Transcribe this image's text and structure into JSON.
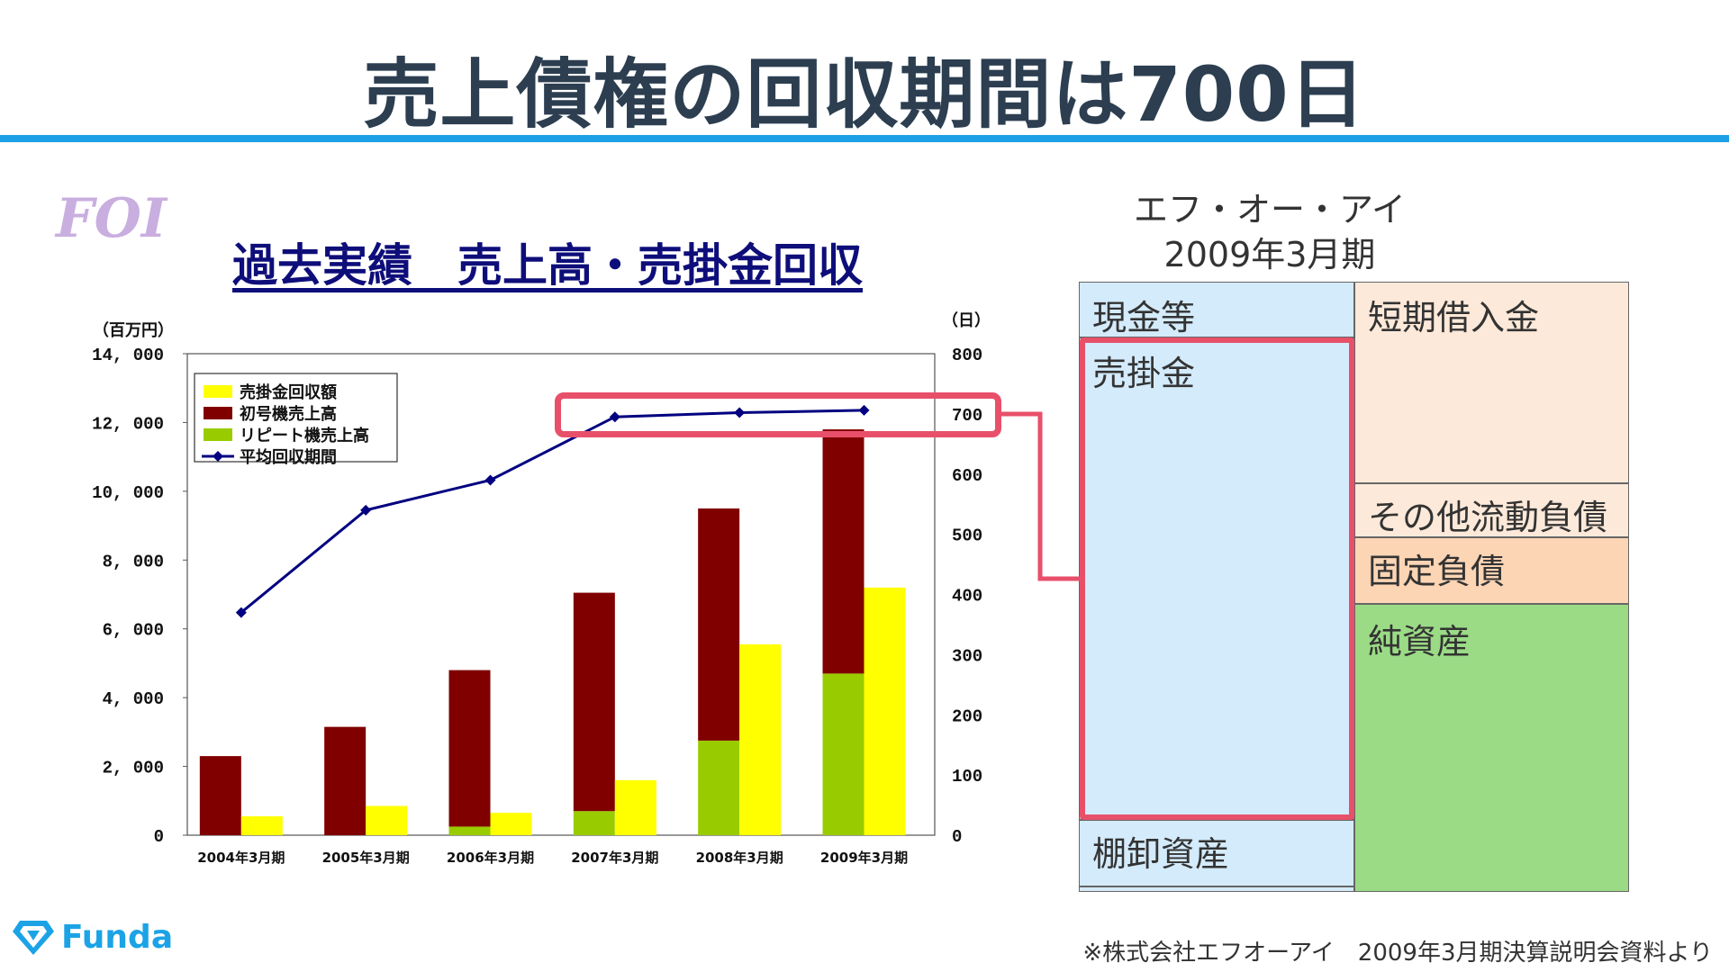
{
  "slide": {
    "title": "売上債権の回収期間は700日",
    "source_note": "※株式会社エフオーアイ　2009年3月期決算説明会資料より",
    "brand": "Funda"
  },
  "colors": {
    "title_rule": "#1ea0e6",
    "highlight": "#e8506a",
    "ar_fill": "#d4ebfb",
    "liab_fill": "#fde9d9",
    "fixed_liab_fill": "#fcd5b5",
    "equity_fill": "#9bdb86"
  },
  "chart_data": {
    "type": "bar",
    "logo_text": "FOI",
    "title": "過去実績　売上高・売掛金回収",
    "y_left_label": "（百万円）",
    "y_right_label": "（日）",
    "categories": [
      "2004年3月期",
      "2005年3月期",
      "2006年3月期",
      "2007年3月期",
      "2008年3月期",
      "2009年3月期"
    ],
    "ylim_left": [
      0,
      14000
    ],
    "yticks_left": [
      "0",
      "2, 000",
      "4, 000",
      "6, 000",
      "8, 000",
      "10, 000",
      "12, 000",
      "14, 000"
    ],
    "ylim_right": [
      0,
      800
    ],
    "yticks_right": [
      "0",
      "100",
      "200",
      "300",
      "400",
      "500",
      "600",
      "700",
      "800"
    ],
    "series": [
      {
        "name": "売掛金回収額",
        "type": "bar",
        "color": "#ffff00",
        "axis": "left",
        "values": [
          550,
          850,
          650,
          1600,
          5550,
          7200
        ]
      },
      {
        "name": "初号機売上高",
        "type": "stacked_bar",
        "color": "#800000",
        "axis": "left",
        "values": [
          2300,
          3150,
          4550,
          6350,
          6750,
          7100
        ]
      },
      {
        "name": "リピート機売上高",
        "type": "stacked_bar",
        "color": "#99cc00",
        "axis": "left",
        "values": [
          0,
          0,
          250,
          700,
          2750,
          4700
        ]
      },
      {
        "name": "平均回収期間",
        "type": "line",
        "color": "#000080",
        "axis": "right",
        "values": [
          370,
          540,
          590,
          695,
          702,
          706
        ]
      }
    ],
    "legend_position": "top-left"
  },
  "balance_sheet": {
    "company": "エフ・オー・アイ",
    "period": "2009年3月期",
    "assets": [
      "現金等",
      "売掛金",
      "棚卸資産"
    ],
    "liabilities": [
      "短期借入金",
      "その他流動負債",
      "固定負債",
      "純資産"
    ]
  }
}
